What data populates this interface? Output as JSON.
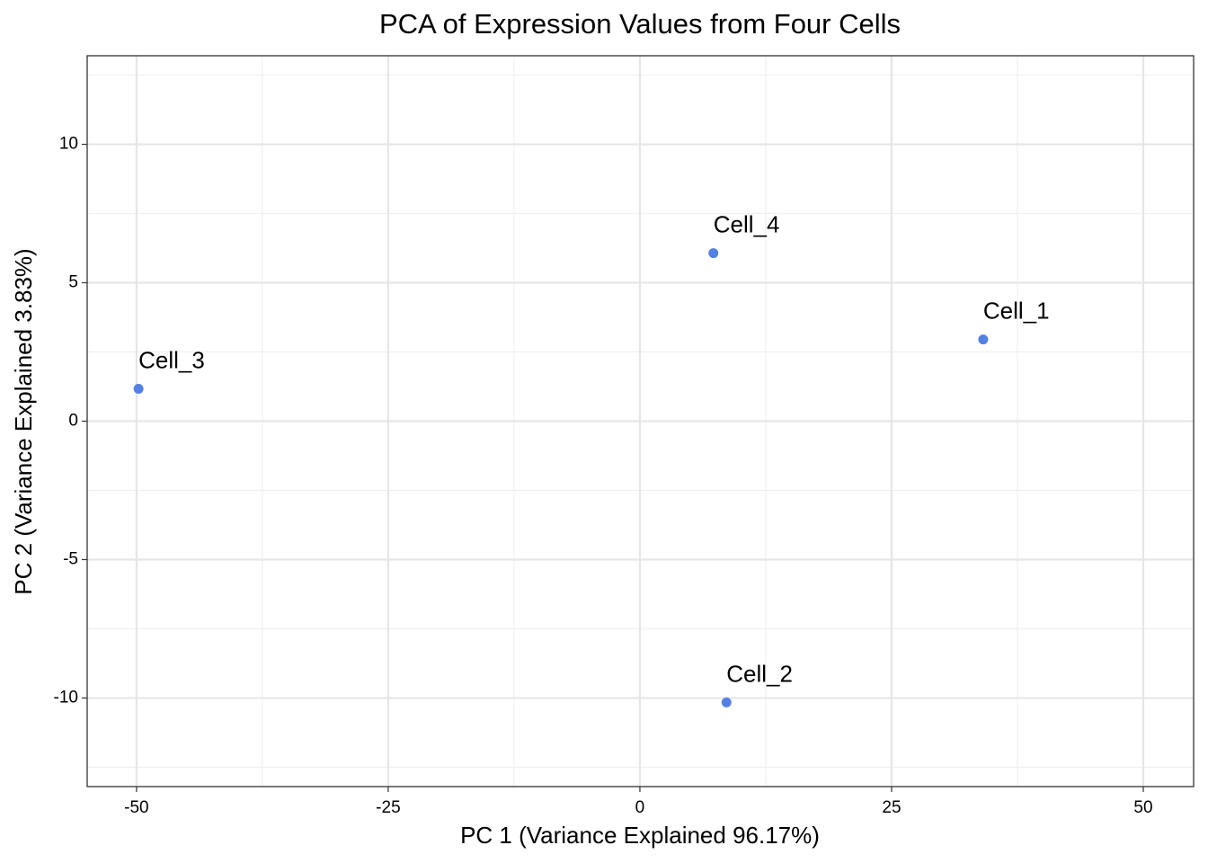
{
  "chart_data": {
    "type": "scatter",
    "title": "PCA of Expression Values from Four Cells",
    "xlabel": "PC 1 (Variance Explained 96.17%)",
    "ylabel": "PC 2 (Variance Explained 3.83%)",
    "labels": [
      "Cell_1",
      "Cell_2",
      "Cell_3",
      "Cell_4"
    ],
    "x": [
      34.1,
      8.6,
      -49.8,
      7.3
    ],
    "values": [
      2.95,
      -10.16,
      1.17,
      6.07
    ],
    "color": "#5580e3",
    "xlim": [
      -54.9,
      55.0
    ],
    "ylim": [
      -13.2,
      13.2
    ],
    "xticks": [
      -50,
      -25,
      0,
      25,
      50
    ],
    "yticks": [
      -10,
      -5,
      0,
      5,
      10
    ],
    "grid": true
  }
}
